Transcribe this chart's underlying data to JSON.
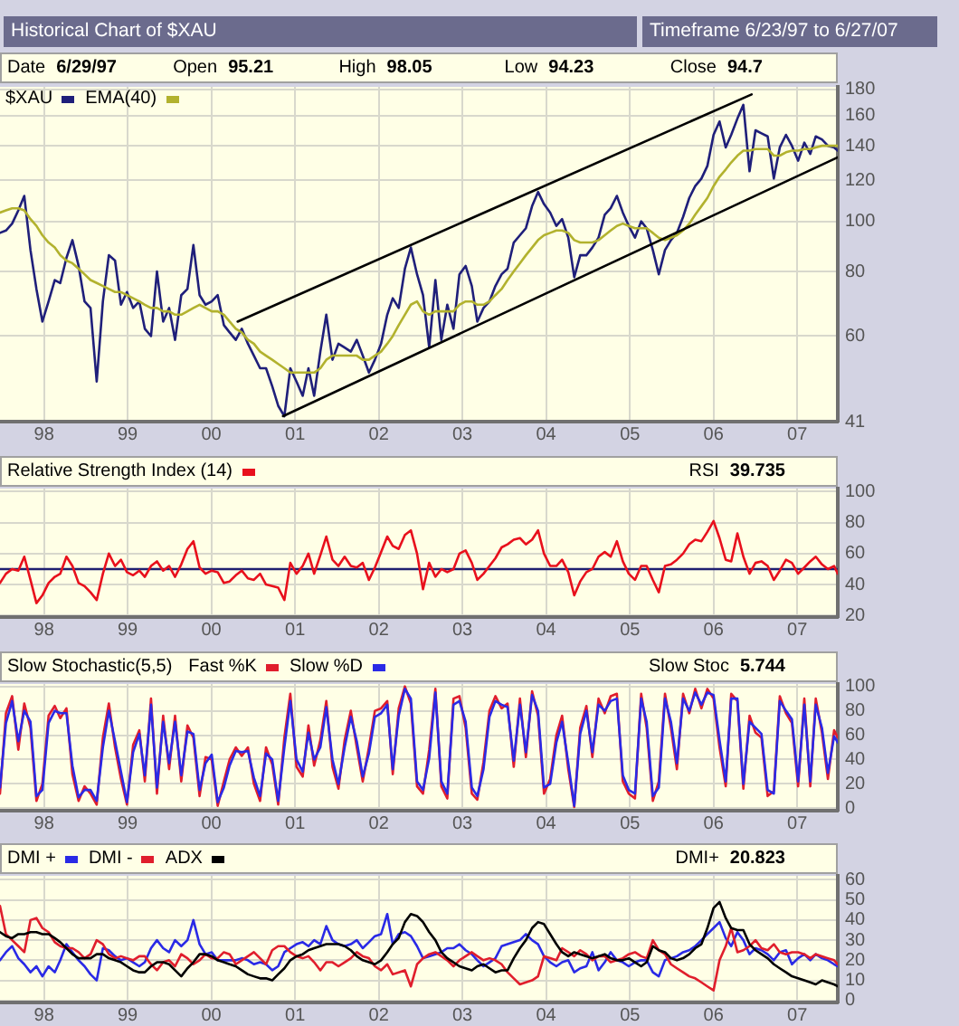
{
  "chart_data": [
    {
      "type": "line",
      "title": "Historical Chart of $XAU",
      "subtitle": "Timeframe 6/23/97 to 6/27/07",
      "annotations": [
        "Date 6/29/97",
        "Open 95.21",
        "High 98.05",
        "Low 94.23",
        "Close 94.7"
      ],
      "x": [
        "1997-06-23",
        "1997-07-19",
        "1997-08-15",
        "1997-09-11",
        "1997-10-07",
        "1997-11-03",
        "1997-11-29",
        "1997-12-25",
        "1998-01-21",
        "1998-02-17",
        "1998-03-13",
        "1998-04-09",
        "1998-05-05",
        "1998-06-01",
        "1998-06-27",
        "1998-07-23",
        "1998-08-19",
        "1998-09-15",
        "1998-10-11",
        "1998-11-07",
        "1998-12-03",
        "1998-12-29",
        "1999-01-25",
        "1999-02-21",
        "1999-03-17",
        "1999-04-13",
        "1999-05-09",
        "1999-06-05",
        "1999-07-01",
        "1999-07-27",
        "1999-08-23",
        "1999-09-19",
        "1999-10-15",
        "1999-11-11",
        "1999-12-07",
        "2000-01-03",
        "2000-01-29",
        "2000-02-25",
        "2000-03-21",
        "2000-04-17",
        "2000-05-13",
        "2000-06-09",
        "2000-07-05",
        "2000-08-01",
        "2000-08-27",
        "2000-09-23",
        "2000-10-19",
        "2000-11-15",
        "2000-12-11",
        "2001-01-07",
        "2001-02-03",
        "2001-02-28",
        "2001-03-25",
        "2001-04-21",
        "2001-05-17",
        "2001-06-13",
        "2001-07-09",
        "2001-08-05",
        "2001-09-01",
        "2001-09-27",
        "2001-10-23",
        "2001-11-19",
        "2001-12-15",
        "2002-01-11",
        "2002-02-07",
        "2002-03-03",
        "2002-03-29",
        "2002-04-25",
        "2002-05-21",
        "2002-06-17",
        "2002-07-13",
        "2002-08-09",
        "2002-09-05",
        "2002-10-01",
        "2002-10-27",
        "2002-11-23",
        "2002-12-19",
        "2003-01-15",
        "2003-02-11",
        "2003-03-07",
        "2003-04-03",
        "2003-04-29",
        "2003-05-25",
        "2003-06-21",
        "2003-07-17",
        "2003-08-13",
        "2003-09-09",
        "2003-10-05",
        "2003-11-01",
        "2003-11-27",
        "2003-12-23",
        "2004-01-19",
        "2004-02-15",
        "2004-03-11",
        "2004-04-07",
        "2004-05-03",
        "2004-05-29",
        "2004-06-25",
        "2004-07-21",
        "2004-08-17",
        "2004-09-13",
        "2004-10-09",
        "2004-11-05",
        "2004-12-01",
        "2004-12-27",
        "2005-01-23",
        "2005-02-19",
        "2005-03-15",
        "2005-04-11",
        "2005-05-07",
        "2005-06-03",
        "2005-06-29",
        "2005-07-25",
        "2005-08-21",
        "2005-09-17",
        "2005-10-13",
        "2005-11-09",
        "2005-12-05",
        "2006-01-01",
        "2006-01-27",
        "2006-02-23",
        "2006-03-19",
        "2006-04-15",
        "2006-05-11",
        "2006-06-07",
        "2006-07-03",
        "2006-07-29",
        "2006-08-25",
        "2006-09-21",
        "2006-10-17",
        "2006-11-13",
        "2006-12-09",
        "2007-01-05",
        "2007-02-01",
        "2007-02-27",
        "2007-03-23",
        "2007-04-19",
        "2007-05-15",
        "2007-06-11",
        "2007-06-27"
      ],
      "xlim": [
        "1997-06-23",
        "2007-06-27"
      ],
      "xticks": [
        {
          "value": "1998",
          "label": "98"
        },
        {
          "value": "1999",
          "label": "99"
        },
        {
          "value": "2000",
          "label": "00"
        },
        {
          "value": "2001",
          "label": "01"
        },
        {
          "value": "2002",
          "label": "02"
        },
        {
          "value": "2003",
          "label": "03"
        },
        {
          "value": "2004",
          "label": "04"
        },
        {
          "value": "2005",
          "label": "05"
        },
        {
          "value": "2006",
          "label": "06"
        },
        {
          "value": "2007",
          "label": "07"
        }
      ],
      "ylim": [
        41,
        182
      ],
      "yticks": [
        41,
        60,
        80,
        100,
        120,
        140,
        160,
        180
      ],
      "log": "y",
      "grid": true,
      "legend": "top left",
      "series": [
        {
          "name": "$XAU",
          "color": "#1f1f7a",
          "values": [
            95,
            96,
            99,
            105,
            112,
            88,
            74,
            64,
            70,
            77,
            76,
            85,
            92,
            82,
            70,
            68,
            49,
            70,
            86,
            84,
            69,
            73,
            68,
            70,
            62,
            60,
            80,
            64,
            68,
            59,
            72,
            74,
            90,
            72,
            69,
            70,
            72,
            63,
            61,
            59,
            62,
            58,
            55,
            52,
            52,
            48,
            44,
            42,
            52,
            49,
            46,
            52,
            46,
            56,
            66,
            54,
            58,
            57,
            56,
            59,
            55,
            51,
            54,
            58,
            66,
            71,
            68,
            81,
            89,
            79,
            72,
            57,
            77,
            59,
            69,
            62,
            79,
            82,
            75,
            64,
            68,
            70,
            75,
            79,
            81,
            91,
            94,
            97,
            107,
            114,
            108,
            104,
            98,
            101,
            93,
            78,
            86,
            86,
            89,
            93,
            103,
            106,
            112,
            104,
            98,
            93,
            100,
            97,
            88,
            79,
            88,
            92,
            95,
            102,
            111,
            117,
            121,
            128,
            147,
            156,
            139,
            147,
            158,
            168,
            125,
            150,
            148,
            146,
            121,
            139,
            147,
            140,
            131,
            142,
            135,
            146,
            144,
            140,
            139,
            137
          ]
        },
        {
          "name": "EMA(40)",
          "color": "#b2b22e",
          "values": [
            104,
            105,
            106,
            106,
            105,
            101,
            98,
            94,
            91,
            89,
            86,
            84,
            83,
            81,
            79,
            77,
            76,
            75,
            74,
            73,
            73,
            72,
            71,
            70,
            69,
            68,
            68,
            67,
            67,
            66,
            66,
            67,
            68,
            69,
            68,
            67,
            67,
            66,
            64,
            62,
            61,
            59,
            58,
            56,
            55,
            54,
            53,
            52,
            51,
            51,
            51,
            51,
            51,
            52,
            54,
            55,
            55,
            55,
            55,
            55,
            54,
            54,
            55,
            56,
            58,
            60,
            63,
            66,
            69,
            70,
            67,
            66,
            67,
            67,
            67,
            67,
            69,
            70,
            70,
            69,
            69,
            70,
            72,
            74,
            77,
            80,
            83,
            86,
            89,
            92,
            94,
            95,
            96,
            96,
            95,
            92,
            91,
            91,
            91,
            92,
            94,
            96,
            98,
            99,
            98,
            97,
            97,
            97,
            95,
            93,
            92,
            93,
            94,
            96,
            99,
            103,
            107,
            111,
            117,
            122,
            126,
            130,
            134,
            137,
            137,
            138,
            138,
            138,
            134,
            134,
            136,
            137,
            137,
            138,
            138,
            139,
            140,
            140,
            140,
            140
          ]
        },
        {
          "color": "#000000",
          "x": [
            "2000-04-25",
            "2006-06-16"
          ],
          "values": [
            64,
            176
          ]
        },
        {
          "color": "#000000",
          "x": [
            "2000-11-09",
            "2007-06-27"
          ],
          "values": [
            42,
            133
          ]
        }
      ]
    },
    {
      "type": "line",
      "annotations": [
        "RSI 39.735"
      ],
      "x": [
        "1997-06-23",
        "1997-07-19",
        "1997-08-15",
        "1997-09-11",
        "1997-10-07",
        "1997-11-03",
        "1997-11-29",
        "1997-12-25",
        "1998-01-21",
        "1998-02-17",
        "1998-03-13",
        "1998-04-09",
        "1998-05-05",
        "1998-06-01",
        "1998-06-27",
        "1998-07-23",
        "1998-08-19",
        "1998-09-15",
        "1998-10-11",
        "1998-11-07",
        "1998-12-03",
        "1998-12-29",
        "1999-01-25",
        "1999-02-21",
        "1999-03-17",
        "1999-04-13",
        "1999-05-09",
        "1999-06-05",
        "1999-07-01",
        "1999-07-27",
        "1999-08-23",
        "1999-09-19",
        "1999-10-15",
        "1999-11-11",
        "1999-12-07",
        "2000-01-03",
        "2000-01-29",
        "2000-02-25",
        "2000-03-21",
        "2000-04-17",
        "2000-05-13",
        "2000-06-09",
        "2000-07-05",
        "2000-08-01",
        "2000-08-27",
        "2000-09-23",
        "2000-10-19",
        "2000-11-15",
        "2000-12-11",
        "2001-01-07",
        "2001-02-03",
        "2001-02-28",
        "2001-03-25",
        "2001-04-21",
        "2001-05-17",
        "2001-06-13",
        "2001-07-09",
        "2001-08-05",
        "2001-09-01",
        "2001-09-27",
        "2001-10-23",
        "2001-11-19",
        "2001-12-15",
        "2002-01-11",
        "2002-02-07",
        "2002-03-03",
        "2002-03-29",
        "2002-04-25",
        "2002-05-21",
        "2002-06-17",
        "2002-07-13",
        "2002-08-09",
        "2002-09-05",
        "2002-10-01",
        "2002-10-27",
        "2002-11-23",
        "2002-12-19",
        "2003-01-15",
        "2003-02-11",
        "2003-03-07",
        "2003-04-03",
        "2003-04-29",
        "2003-05-25",
        "2003-06-21",
        "2003-07-17",
        "2003-08-13",
        "2003-09-09",
        "2003-10-05",
        "2003-11-01",
        "2003-11-27",
        "2003-12-23",
        "2004-01-19",
        "2004-02-15",
        "2004-03-11",
        "2004-04-07",
        "2004-05-03",
        "2004-05-29",
        "2004-06-25",
        "2004-07-21",
        "2004-08-17",
        "2004-09-13",
        "2004-10-09",
        "2004-11-05",
        "2004-12-01",
        "2004-12-27",
        "2005-01-23",
        "2005-02-19",
        "2005-03-15",
        "2005-04-11",
        "2005-05-07",
        "2005-06-03",
        "2005-06-29",
        "2005-07-25",
        "2005-08-21",
        "2005-09-17",
        "2005-10-13",
        "2005-11-09",
        "2005-12-05",
        "2006-01-01",
        "2006-01-27",
        "2006-02-23",
        "2006-03-19",
        "2006-04-15",
        "2006-05-11",
        "2006-06-07",
        "2006-07-03",
        "2006-07-29",
        "2006-08-25",
        "2006-09-21",
        "2006-10-17",
        "2006-11-13",
        "2006-12-09",
        "2007-01-05",
        "2007-02-01",
        "2007-02-27",
        "2007-03-23",
        "2007-04-19",
        "2007-05-15",
        "2007-06-11",
        "2007-06-27"
      ],
      "xlim": [
        "1997-06-23",
        "2007-06-27"
      ],
      "xticks": [
        {
          "value": "1998",
          "label": "98"
        },
        {
          "value": "1999",
          "label": "99"
        },
        {
          "value": "2000",
          "label": "00"
        },
        {
          "value": "2001",
          "label": "01"
        },
        {
          "value": "2002",
          "label": "02"
        },
        {
          "value": "2003",
          "label": "03"
        },
        {
          "value": "2004",
          "label": "04"
        },
        {
          "value": "2005",
          "label": "05"
        },
        {
          "value": "2006",
          "label": "06"
        },
        {
          "value": "2007",
          "label": "07"
        }
      ],
      "ylim": [
        19,
        102
      ],
      "yticks": [
        20,
        40,
        60,
        80,
        100
      ],
      "grid": true,
      "legend": "top left",
      "ref_lines": [
        {
          "axis": "y",
          "value": 50,
          "color": "#202070"
        }
      ],
      "series": [
        {
          "name": "Relative Strength Index (14)",
          "color": "#e8101c",
          "values": [
            41,
            47,
            50,
            49,
            58,
            43,
            28,
            33,
            41,
            45,
            47,
            58,
            52,
            41,
            39,
            35,
            30,
            47,
            60,
            52,
            56,
            48,
            46,
            49,
            45,
            52,
            55,
            49,
            52,
            45,
            53,
            63,
            68,
            51,
            47,
            49,
            48,
            41,
            42,
            46,
            49,
            44,
            43,
            47,
            40,
            39,
            38,
            30,
            54,
            47,
            52,
            60,
            47,
            59,
            71,
            56,
            52,
            58,
            52,
            51,
            54,
            43,
            51,
            61,
            71,
            65,
            63,
            72,
            75,
            60,
            37,
            54,
            45,
            50,
            48,
            50,
            60,
            62,
            54,
            43,
            47,
            52,
            57,
            64,
            66,
            69,
            70,
            66,
            69,
            75,
            60,
            52,
            52,
            56,
            48,
            33,
            42,
            48,
            50,
            58,
            61,
            58,
            68,
            55,
            47,
            43,
            52,
            52,
            43,
            35,
            52,
            53,
            56,
            60,
            66,
            69,
            68,
            74,
            81,
            70,
            56,
            55,
            73,
            58,
            47,
            54,
            55,
            52,
            43,
            49,
            56,
            54,
            47,
            51,
            55,
            58,
            53,
            50,
            52,
            47
          ]
        }
      ]
    },
    {
      "type": "line",
      "title": "Slow Stochastic(5,5)",
      "annotations": [
        "Slow Stoc 5.744"
      ],
      "x": [
        "1997-06-23",
        "1997-07-19",
        "1997-08-15",
        "1997-09-11",
        "1997-10-07",
        "1997-11-03",
        "1997-11-29",
        "1997-12-25",
        "1998-01-21",
        "1998-02-17",
        "1998-03-13",
        "1998-04-09",
        "1998-05-05",
        "1998-06-01",
        "1998-06-27",
        "1998-07-23",
        "1998-08-19",
        "1998-09-15",
        "1998-10-11",
        "1998-11-07",
        "1998-12-03",
        "1998-12-29",
        "1999-01-25",
        "1999-02-21",
        "1999-03-17",
        "1999-04-13",
        "1999-05-09",
        "1999-06-05",
        "1999-07-01",
        "1999-07-27",
        "1999-08-23",
        "1999-09-19",
        "1999-10-15",
        "1999-11-11",
        "1999-12-07",
        "2000-01-03",
        "2000-01-29",
        "2000-02-25",
        "2000-03-21",
        "2000-04-17",
        "2000-05-13",
        "2000-06-09",
        "2000-07-05",
        "2000-08-01",
        "2000-08-27",
        "2000-09-23",
        "2000-10-19",
        "2000-11-15",
        "2000-12-11",
        "2001-01-07",
        "2001-02-03",
        "2001-02-28",
        "2001-03-25",
        "2001-04-21",
        "2001-05-17",
        "2001-06-13",
        "2001-07-09",
        "2001-08-05",
        "2001-09-01",
        "2001-09-27",
        "2001-10-23",
        "2001-11-19",
        "2001-12-15",
        "2002-01-11",
        "2002-02-07",
        "2002-03-03",
        "2002-03-29",
        "2002-04-25",
        "2002-05-21",
        "2002-06-17",
        "2002-07-13",
        "2002-08-09",
        "2002-09-05",
        "2002-10-01",
        "2002-10-27",
        "2002-11-23",
        "2002-12-19",
        "2003-01-15",
        "2003-02-11",
        "2003-03-07",
        "2003-04-03",
        "2003-04-29",
        "2003-05-25",
        "2003-06-21",
        "2003-07-17",
        "2003-08-13",
        "2003-09-09",
        "2003-10-05",
        "2003-11-01",
        "2003-11-27",
        "2003-12-23",
        "2004-01-19",
        "2004-02-15",
        "2004-03-11",
        "2004-04-07",
        "2004-05-03",
        "2004-05-29",
        "2004-06-25",
        "2004-07-21",
        "2004-08-17",
        "2004-09-13",
        "2004-10-09",
        "2004-11-05",
        "2004-12-01",
        "2004-12-27",
        "2005-01-23",
        "2005-02-19",
        "2005-03-15",
        "2005-04-11",
        "2005-05-07",
        "2005-06-03",
        "2005-06-29",
        "2005-07-25",
        "2005-08-21",
        "2005-09-17",
        "2005-10-13",
        "2005-11-09",
        "2005-12-05",
        "2006-01-01",
        "2006-01-27",
        "2006-02-23",
        "2006-03-19",
        "2006-04-15",
        "2006-05-11",
        "2006-06-07",
        "2006-07-03",
        "2006-07-29",
        "2006-08-25",
        "2006-09-21",
        "2006-10-17",
        "2006-11-13",
        "2006-12-09",
        "2007-01-05",
        "2007-02-01",
        "2007-02-27",
        "2007-03-23",
        "2007-04-19",
        "2007-05-15",
        "2007-06-11",
        "2007-06-27"
      ],
      "xlim": [
        "1997-06-23",
        "2007-06-27"
      ],
      "xticks": [
        {
          "value": "1998",
          "label": "98"
        },
        {
          "value": "1999",
          "label": "99"
        },
        {
          "value": "2000",
          "label": "00"
        },
        {
          "value": "2001",
          "label": "01"
        },
        {
          "value": "2002",
          "label": "02"
        },
        {
          "value": "2003",
          "label": "03"
        },
        {
          "value": "2004",
          "label": "04"
        },
        {
          "value": "2005",
          "label": "05"
        },
        {
          "value": "2006",
          "label": "06"
        },
        {
          "value": "2007",
          "label": "07"
        }
      ],
      "ylim": [
        -2,
        102
      ],
      "yticks": [
        0,
        20,
        40,
        60,
        80,
        100
      ],
      "grid": true,
      "legend": "top left",
      "series": [
        {
          "name": "Fast %K",
          "color": "#e01e2c",
          "values": [
            12,
            78,
            92,
            48,
            86,
            66,
            6,
            20,
            76,
            84,
            74,
            82,
            28,
            6,
            18,
            12,
            3,
            58,
            86,
            50,
            24,
            3,
            52,
            64,
            22,
            90,
            12,
            76,
            32,
            76,
            22,
            68,
            58,
            10,
            42,
            40,
            2,
            22,
            40,
            50,
            43,
            50,
            20,
            6,
            50,
            36,
            3,
            58,
            94,
            34,
            26,
            68,
            35,
            56,
            88,
            34,
            16,
            56,
            80,
            50,
            22,
            50,
            80,
            82,
            88,
            28,
            82,
            100,
            86,
            18,
            12,
            48,
            98,
            18,
            8,
            90,
            92,
            66,
            12,
            7,
            38,
            80,
            92,
            82,
            86,
            34,
            90,
            42,
            96,
            76,
            12,
            24,
            60,
            76,
            32,
            1,
            66,
            84,
            42,
            90,
            78,
            92,
            94,
            22,
            12,
            8,
            94,
            66,
            6,
            22,
            94,
            66,
            32,
            94,
            78,
            98,
            82,
            98,
            90,
            50,
            18,
            94,
            88,
            16,
            76,
            62,
            58,
            10,
            14,
            92,
            78,
            70,
            18,
            90,
            18,
            90,
            62,
            24,
            64,
            58
          ]
        },
        {
          "name": "Slow %D",
          "color": "#2a2ae6",
          "values": [
            17,
            70,
            88,
            55,
            80,
            71,
            10,
            15,
            70,
            80,
            78,
            78,
            35,
            9,
            15,
            15,
            6,
            50,
            80,
            55,
            30,
            5,
            46,
            61,
            27,
            85,
            17,
            71,
            37,
            71,
            27,
            63,
            61,
            15,
            37,
            44,
            5,
            17,
            35,
            47,
            46,
            47,
            25,
            10,
            45,
            40,
            6,
            50,
            88,
            40,
            30,
            62,
            40,
            50,
            83,
            40,
            20,
            50,
            75,
            55,
            26,
            45,
            75,
            78,
            85,
            32,
            76,
            98,
            90,
            22,
            15,
            41,
            95,
            22,
            12,
            85,
            88,
            71,
            17,
            10,
            32,
            75,
            88,
            85,
            83,
            39,
            85,
            46,
            93,
            80,
            17,
            20,
            54,
            71,
            37,
            2,
            61,
            80,
            46,
            85,
            80,
            88,
            90,
            27,
            15,
            12,
            90,
            71,
            10,
            17,
            90,
            71,
            37,
            90,
            80,
            95,
            85,
            95,
            93,
            56,
            22,
            90,
            90,
            20,
            71,
            66,
            61,
            15,
            12,
            88,
            80,
            73,
            22,
            85,
            22,
            85,
            66,
            29,
            59,
            54
          ]
        }
      ]
    },
    {
      "type": "line",
      "annotations": [
        "DMI+ 20.823"
      ],
      "x": [
        "1997-06-23",
        "1997-07-19",
        "1997-08-15",
        "1997-09-11",
        "1997-10-07",
        "1997-11-03",
        "1997-11-29",
        "1997-12-25",
        "1998-01-21",
        "1998-02-17",
        "1998-03-13",
        "1998-04-09",
        "1998-05-05",
        "1998-06-01",
        "1998-06-27",
        "1998-07-23",
        "1998-08-19",
        "1998-09-15",
        "1998-10-11",
        "1998-11-07",
        "1998-12-03",
        "1998-12-29",
        "1999-01-25",
        "1999-02-21",
        "1999-03-17",
        "1999-04-13",
        "1999-05-09",
        "1999-06-05",
        "1999-07-01",
        "1999-07-27",
        "1999-08-23",
        "1999-09-19",
        "1999-10-15",
        "1999-11-11",
        "1999-12-07",
        "2000-01-03",
        "2000-01-29",
        "2000-02-25",
        "2000-03-21",
        "2000-04-17",
        "2000-05-13",
        "2000-06-09",
        "2000-07-05",
        "2000-08-01",
        "2000-08-27",
        "2000-09-23",
        "2000-10-19",
        "2000-11-15",
        "2000-12-11",
        "2001-01-07",
        "2001-02-03",
        "2001-02-28",
        "2001-03-25",
        "2001-04-21",
        "2001-05-17",
        "2001-06-13",
        "2001-07-09",
        "2001-08-05",
        "2001-09-01",
        "2001-09-27",
        "2001-10-23",
        "2001-11-19",
        "2001-12-15",
        "2002-01-11",
        "2002-02-07",
        "2002-03-03",
        "2002-03-29",
        "2002-04-25",
        "2002-05-21",
        "2002-06-17",
        "2002-07-13",
        "2002-08-09",
        "2002-09-05",
        "2002-10-01",
        "2002-10-27",
        "2002-11-23",
        "2002-12-19",
        "2003-01-15",
        "2003-02-11",
        "2003-03-07",
        "2003-04-03",
        "2003-04-29",
        "2003-05-25",
        "2003-06-21",
        "2003-07-17",
        "2003-08-13",
        "2003-09-09",
        "2003-10-05",
        "2003-11-01",
        "2003-11-27",
        "2003-12-23",
        "2004-01-19",
        "2004-02-15",
        "2004-03-11",
        "2004-04-07",
        "2004-05-03",
        "2004-05-29",
        "2004-06-25",
        "2004-07-21",
        "2004-08-17",
        "2004-09-13",
        "2004-10-09",
        "2004-11-05",
        "2004-12-01",
        "2004-12-27",
        "2005-01-23",
        "2005-02-19",
        "2005-03-15",
        "2005-04-11",
        "2005-05-07",
        "2005-06-03",
        "2005-06-29",
        "2005-07-25",
        "2005-08-21",
        "2005-09-17",
        "2005-10-13",
        "2005-11-09",
        "2005-12-05",
        "2006-01-01",
        "2006-01-27",
        "2006-02-23",
        "2006-03-19",
        "2006-04-15",
        "2006-05-11",
        "2006-06-07",
        "2006-07-03",
        "2006-07-29",
        "2006-08-25",
        "2006-09-21",
        "2006-10-17",
        "2006-11-13",
        "2006-12-09",
        "2007-01-05",
        "2007-02-01",
        "2007-02-27",
        "2007-03-23",
        "2007-04-19",
        "2007-05-15",
        "2007-06-11",
        "2007-06-27"
      ],
      "xlim": [
        "1997-06-23",
        "2007-06-27"
      ],
      "xticks": [
        {
          "value": "1998",
          "label": "98"
        },
        {
          "value": "1999",
          "label": "99"
        },
        {
          "value": "2000",
          "label": "00"
        },
        {
          "value": "2001",
          "label": "01"
        },
        {
          "value": "2002",
          "label": "02"
        },
        {
          "value": "2003",
          "label": "03"
        },
        {
          "value": "2004",
          "label": "04"
        },
        {
          "value": "2005",
          "label": "05"
        },
        {
          "value": "2006",
          "label": "06"
        },
        {
          "value": "2007",
          "label": "07"
        }
      ],
      "ylim": [
        -1,
        62
      ],
      "yticks": [
        0,
        10,
        20,
        30,
        40,
        50,
        60
      ],
      "grid": true,
      "legend": "top left",
      "series": [
        {
          "name": "DMI +",
          "color": "#2a2ae6",
          "values": [
            20,
            24,
            27,
            21,
            18,
            14,
            17,
            12,
            17,
            14,
            20,
            28,
            24,
            20,
            17,
            13,
            10,
            26,
            25,
            22,
            20,
            21,
            19,
            17,
            19,
            26,
            30,
            26,
            24,
            30,
            27,
            30,
            40,
            28,
            23,
            24,
            20,
            20,
            20,
            20,
            21,
            20,
            18,
            19,
            18,
            15,
            17,
            24,
            26,
            28,
            29,
            27,
            30,
            28,
            37,
            30,
            28,
            27,
            28,
            30,
            26,
            29,
            32,
            33,
            43,
            28,
            33,
            34,
            32,
            27,
            21,
            22,
            23,
            24,
            26,
            26,
            28,
            25,
            23,
            20,
            17,
            19,
            21,
            27,
            28,
            29,
            30,
            33,
            30,
            28,
            22,
            19,
            17,
            19,
            20,
            14,
            16,
            17,
            24,
            15,
            19,
            24,
            20,
            19,
            17,
            19,
            20,
            20,
            14,
            12,
            20,
            21,
            22,
            24,
            25,
            27,
            30,
            33,
            36,
            39,
            31,
            27,
            34,
            30,
            23,
            26,
            25,
            23,
            20,
            24,
            25,
            18,
            21,
            23,
            20,
            23,
            21,
            20,
            18,
            17
          ]
        },
        {
          "name": "DMI -",
          "color": "#e01e2c",
          "values": [
            47,
            33,
            30,
            27,
            24,
            40,
            41,
            36,
            34,
            29,
            27,
            26,
            26,
            24,
            21,
            23,
            30,
            28,
            23,
            21,
            22,
            21,
            20,
            22,
            22,
            18,
            15,
            19,
            20,
            17,
            23,
            21,
            18,
            20,
            23,
            21,
            21,
            24,
            23,
            18,
            20,
            22,
            24,
            21,
            18,
            25,
            27,
            27,
            24,
            22,
            21,
            22,
            19,
            15,
            19,
            19,
            17,
            19,
            21,
            24,
            22,
            21,
            17,
            15,
            18,
            13,
            14,
            15,
            7,
            18,
            21,
            23,
            24,
            22,
            20,
            17,
            20,
            22,
            24,
            22,
            20,
            21,
            20,
            18,
            14,
            11,
            8,
            9,
            10,
            12,
            22,
            21,
            20,
            26,
            24,
            22,
            25,
            23,
            20,
            22,
            22,
            19,
            20,
            21,
            23,
            24,
            22,
            21,
            30,
            25,
            23,
            18,
            16,
            14,
            12,
            11,
            9,
            7,
            5,
            20,
            27,
            36,
            24,
            25,
            27,
            30,
            26,
            25,
            28,
            24,
            23,
            24,
            24,
            23,
            21,
            23,
            22,
            21,
            20,
            18
          ]
        },
        {
          "name": "ADX",
          "color": "#000000",
          "values": [
            34,
            32,
            31,
            33,
            33,
            34,
            34,
            33,
            33,
            31,
            29,
            26,
            23,
            21,
            21,
            21,
            23,
            23,
            21,
            20,
            19,
            17,
            15,
            14,
            14,
            17,
            19,
            19,
            18,
            15,
            12,
            16,
            19,
            23,
            23,
            22,
            20,
            19,
            18,
            17,
            15,
            13,
            12,
            11,
            11,
            10,
            13,
            16,
            20,
            22,
            23,
            25,
            26,
            27,
            28,
            28,
            28,
            27,
            25,
            22,
            20,
            19,
            18,
            20,
            24,
            28,
            31,
            39,
            43,
            42,
            39,
            34,
            30,
            24,
            21,
            19,
            17,
            16,
            15,
            17,
            18,
            16,
            14,
            15,
            15,
            21,
            26,
            30,
            36,
            39,
            38,
            33,
            28,
            24,
            22,
            24,
            23,
            22,
            21,
            22,
            23,
            21,
            20,
            20,
            21,
            19,
            17,
            19,
            27,
            25,
            24,
            21,
            20,
            21,
            23,
            26,
            28,
            36,
            46,
            49,
            41,
            36,
            35,
            35,
            28,
            25,
            23,
            21,
            18,
            16,
            14,
            12,
            11,
            10,
            9,
            8,
            10,
            9,
            8,
            7
          ]
        }
      ]
    }
  ]
}
